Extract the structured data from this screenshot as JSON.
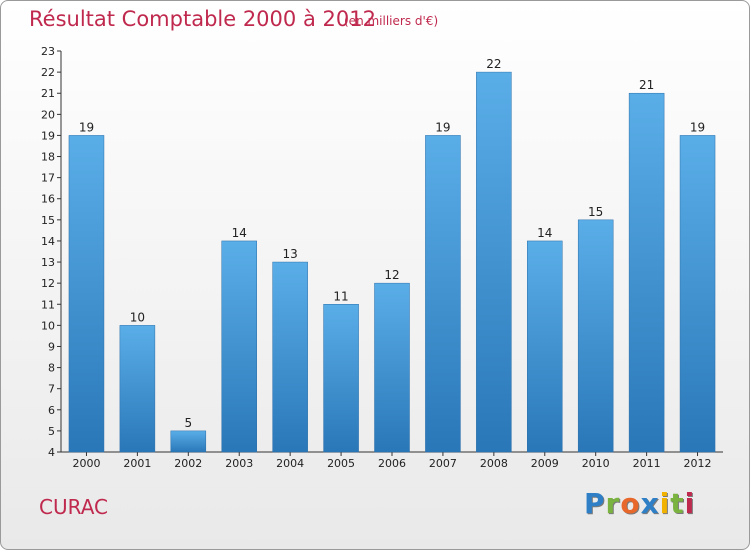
{
  "header": {
    "title": "Résultat Comptable 2000 à 2012",
    "subtitle": "(en milliers d'€)"
  },
  "commune": "CURAC",
  "logo": {
    "text": "Proxiti",
    "letters": [
      "P",
      "r",
      "o",
      "x",
      "i",
      "t",
      "i"
    ],
    "colors": [
      "#2f7fc7",
      "#7ab33f",
      "#e8672a",
      "#2f7fc7",
      "#f2b200",
      "#7ab33f",
      "#c0294e"
    ]
  },
  "colors": {
    "bar_top": "#5aaee8",
    "bar_bottom": "#2a77b8",
    "title": "#c0294e"
  },
  "chart_data": {
    "type": "bar",
    "title": "Résultat Comptable 2000 à 2012",
    "subtitle": "(en milliers d'€)",
    "xlabel": "",
    "ylabel": "",
    "categories": [
      "2000",
      "2001",
      "2002",
      "2003",
      "2004",
      "2005",
      "2006",
      "2007",
      "2008",
      "2009",
      "2010",
      "2011",
      "2012"
    ],
    "values": [
      19,
      10,
      5,
      14,
      13,
      11,
      12,
      19,
      22,
      14,
      15,
      21,
      19
    ],
    "ylim": [
      4,
      23
    ],
    "yticks": [
      4,
      5,
      6,
      7,
      8,
      9,
      10,
      11,
      12,
      13,
      14,
      15,
      16,
      17,
      18,
      19,
      20,
      21,
      22,
      23
    ],
    "grid": false
  }
}
